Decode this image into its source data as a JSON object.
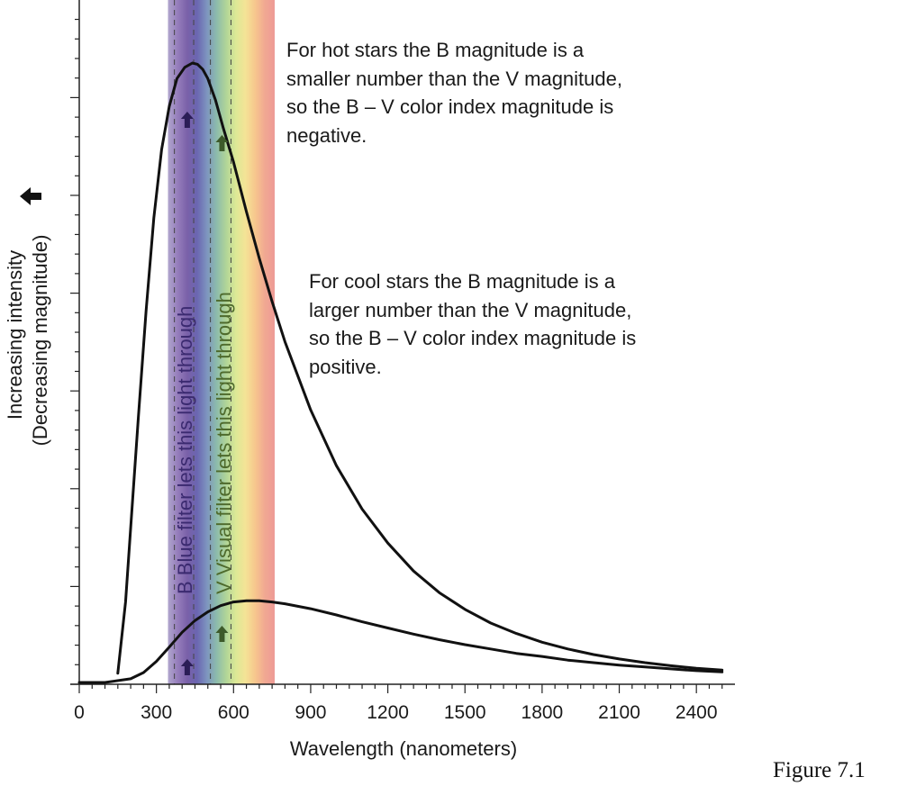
{
  "figure_label": "Figure 7.1",
  "colors": {
    "curve": "#111111",
    "blue_arrow": "#2b1d56",
    "green_arrow": "#3d5a2a",
    "blue_text": "#3b2a70",
    "green_text": "#4e6a2c",
    "spectrum": [
      "#a79cc8",
      "#8a6fb4",
      "#6b4f9f",
      "#5a55a8",
      "#6f88b8",
      "#7fb3a3",
      "#a8d08c",
      "#d9e68a",
      "#f3e08a",
      "#f6c081",
      "#ef9e86",
      "#ec8f8a"
    ]
  },
  "chart_data": {
    "type": "line",
    "xlabel": "Wavelength (nanometers)",
    "ylabel_lines": [
      "Increasing intensity",
      "(Decreasing magnitude)"
    ],
    "ylabel_arrow": "up-arrow",
    "x_ticks": [
      0,
      300,
      600,
      900,
      1200,
      1500,
      1800,
      2100,
      2400
    ],
    "xlim": [
      0,
      2550
    ],
    "ylim": [
      0,
      1
    ],
    "y_major_ticks": [
      0.158,
      0.316,
      0.474,
      0.632,
      0.79,
      0.948
    ],
    "grid": false,
    "series": [
      {
        "x": [
          150,
          180,
          200,
          230,
          260,
          290,
          320,
          350,
          380,
          410,
          440,
          460,
          480,
          500,
          530,
          560,
          600,
          650,
          700,
          750,
          800,
          900,
          1000,
          1100,
          1200,
          1300,
          1400,
          1500,
          1600,
          1700,
          1800,
          1900,
          2000,
          2100,
          2200,
          2300,
          2400,
          2500
        ],
        "y": [
          0.015,
          0.13,
          0.25,
          0.43,
          0.6,
          0.75,
          0.86,
          0.93,
          0.975,
          0.993,
          1.0,
          0.998,
          0.99,
          0.975,
          0.94,
          0.895,
          0.84,
          0.76,
          0.685,
          0.615,
          0.55,
          0.44,
          0.35,
          0.28,
          0.225,
          0.18,
          0.145,
          0.118,
          0.096,
          0.079,
          0.065,
          0.054,
          0.045,
          0.038,
          0.032,
          0.027,
          0.023,
          0.02
        ]
      },
      {
        "x": [
          0,
          100,
          200,
          250,
          300,
          350,
          400,
          450,
          500,
          550,
          600,
          650,
          700,
          750,
          800,
          900,
          1000,
          1100,
          1200,
          1300,
          1400,
          1500,
          1600,
          1700,
          1800,
          1900,
          2000,
          2100,
          2200,
          2300,
          2400,
          2500
        ],
        "y": [
          0.0,
          0.0,
          0.006,
          0.016,
          0.034,
          0.057,
          0.081,
          0.1,
          0.114,
          0.124,
          0.13,
          0.132,
          0.132,
          0.13,
          0.127,
          0.119,
          0.109,
          0.098,
          0.088,
          0.078,
          0.069,
          0.061,
          0.054,
          0.047,
          0.042,
          0.036,
          0.032,
          0.028,
          0.025,
          0.022,
          0.019,
          0.017
        ]
      }
    ],
    "bands": [
      {
        "name": "B",
        "label": "B Blue filter lets this light through",
        "dashes": [
          370,
          445
        ],
        "arrow_x": 420
      },
      {
        "name": "V",
        "label": "V Visual filter lets this light through",
        "dashes": [
          510,
          590
        ],
        "arrow_x": 555
      }
    ],
    "visible_range": [
      345,
      760
    ],
    "annotations": [
      "For hot stars the B magnitude is a\nsmaller number than the V magnitude,\nso the B – V color index magnitude is\nnegative.",
      "For cool stars the B magnitude is a\nlarger number than the V magnitude,\nso the B – V color index magnitude is\npositive."
    ]
  }
}
